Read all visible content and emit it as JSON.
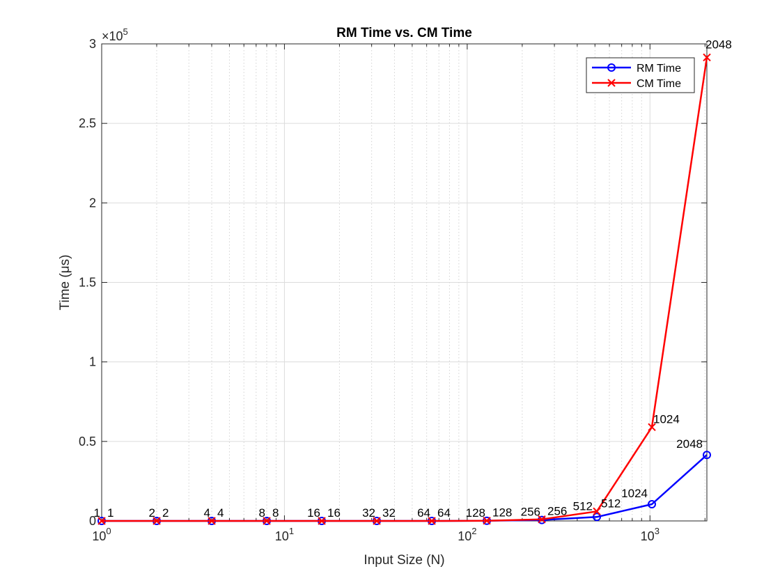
{
  "chart_data": {
    "type": "line",
    "title": "RM Time vs. CM Time",
    "xlabel": "Input Size (N)",
    "ylabel": "Time (μs)",
    "x_scale": "log",
    "xlim": [
      1,
      2048
    ],
    "ylim": [
      0,
      300000
    ],
    "y_exponent_label": "×10",
    "y_exponent_power": "5",
    "x_ticks": [
      {
        "value": 1,
        "base": "10",
        "exp": "0"
      },
      {
        "value": 10,
        "base": "10",
        "exp": "1"
      },
      {
        "value": 100,
        "base": "10",
        "exp": "2"
      },
      {
        "value": 1000,
        "base": "10",
        "exp": "3"
      }
    ],
    "y_ticks": [
      {
        "value": 0,
        "label": "0"
      },
      {
        "value": 50000,
        "label": "0.5"
      },
      {
        "value": 100000,
        "label": "1"
      },
      {
        "value": 150000,
        "label": "1.5"
      },
      {
        "value": 200000,
        "label": "2"
      },
      {
        "value": 250000,
        "label": "2.5"
      },
      {
        "value": 300000,
        "label": "3"
      }
    ],
    "grid": true,
    "legend_position": "top-right",
    "x": [
      1,
      2,
      4,
      8,
      16,
      32,
      64,
      128,
      256,
      512,
      1024,
      2048
    ],
    "series": [
      {
        "name": "RM Time",
        "color": "#0000ff",
        "marker": "circle",
        "values": [
          0,
          0,
          0,
          0,
          0,
          0,
          0,
          100,
          600,
          2500,
          10500,
          41500
        ],
        "labels": [
          "1",
          "2",
          "4",
          "8",
          "16",
          "32",
          "64",
          "128",
          "256",
          "512",
          "1024",
          "2048"
        ]
      },
      {
        "name": "CM Time",
        "color": "#ff0000",
        "marker": "x",
        "values": [
          0,
          0,
          0,
          0,
          0,
          0,
          0,
          150,
          1000,
          6000,
          59000,
          291500
        ],
        "labels": [
          "1",
          "2",
          "4",
          "8",
          "16",
          "32",
          "64",
          "128",
          "256",
          "512",
          "1024",
          "2048"
        ]
      }
    ]
  }
}
